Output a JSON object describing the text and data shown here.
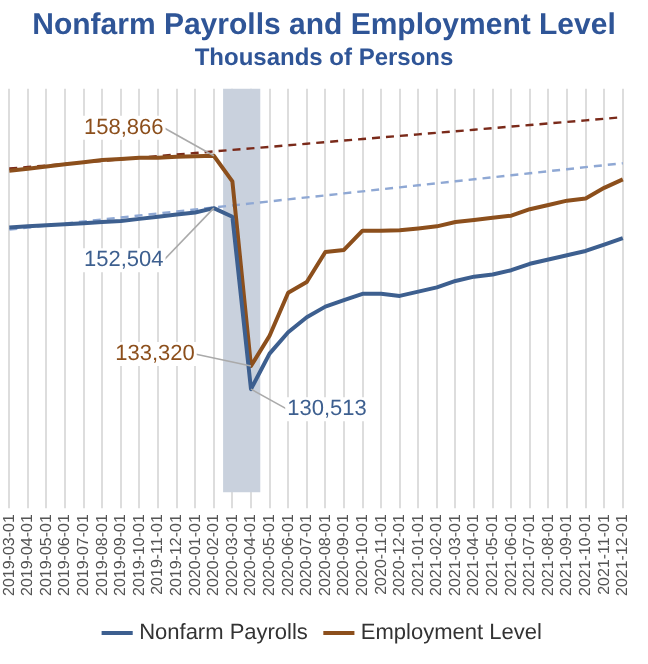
{
  "chart_data": {
    "type": "line",
    "title": "Nonfarm Payrolls and Employment Level",
    "subtitle": "Thousands of Persons",
    "categories": [
      "2019-03-01",
      "2019-04-01",
      "2019-05-01",
      "2019-06-01",
      "2019-07-01",
      "2019-08-01",
      "2019-09-01",
      "2019-10-01",
      "2019-11-01",
      "2019-12-01",
      "2020-01-01",
      "2020-02-01",
      "2020-03-01",
      "2020-04-01",
      "2020-05-01",
      "2020-06-01",
      "2020-07-01",
      "2020-08-01",
      "2020-09-01",
      "2020-10-01",
      "2020-11-01",
      "2020-12-01",
      "2021-01-01",
      "2021-02-01",
      "2021-03-01",
      "2021-04-01",
      "2021-05-01",
      "2021-06-01",
      "2021-07-01",
      "2021-08-01",
      "2021-09-01",
      "2021-10-01",
      "2021-11-01",
      "2021-12-01"
    ],
    "series": [
      {
        "name": "Nonfarm Payrolls",
        "color": "#3d5f8f",
        "values": [
          150160,
          150290,
          150420,
          150550,
          150680,
          150810,
          150940,
          151200,
          151460,
          151720,
          151980,
          152504,
          151460,
          130513,
          134830,
          137420,
          139240,
          140540,
          141320,
          142100,
          142100,
          141840,
          142360,
          142880,
          143660,
          144180,
          144440,
          144960,
          145740,
          146260,
          146780,
          147300,
          148080,
          148860
        ],
        "value_labels": [
          null,
          null,
          null,
          null,
          null,
          null,
          null,
          null,
          null,
          null,
          null,
          "152,504",
          null,
          "130,513",
          null,
          null,
          null,
          null,
          null,
          null,
          null,
          null,
          null,
          null,
          null,
          null,
          null,
          null,
          null,
          null,
          null,
          null,
          null,
          null
        ]
      },
      {
        "name": "Employment Level",
        "color": "#8c4f1c",
        "values": [
          157050,
          157300,
          157570,
          157830,
          158090,
          158350,
          158480,
          158610,
          158610,
          158740,
          158800,
          158866,
          155750,
          133320,
          137000,
          142230,
          143530,
          147170,
          147430,
          149770,
          149770,
          149810,
          150030,
          150290,
          150810,
          151070,
          151330,
          151590,
          152370,
          152890,
          153410,
          153670,
          154970,
          156000
        ],
        "value_labels": [
          null,
          null,
          null,
          null,
          null,
          null,
          null,
          null,
          null,
          null,
          null,
          "158,866",
          null,
          "133,320",
          null,
          null,
          null,
          null,
          null,
          null,
          null,
          null,
          null,
          null,
          null,
          null,
          null,
          null,
          null,
          null,
          null,
          null,
          null,
          null
        ]
      },
      {
        "type": "line",
        "color": "#8fa8d4",
        "line_style": "dashed",
        "values": [
          149900,
          150140,
          150390,
          150630,
          150880,
          151120,
          151370,
          151610,
          151860,
          152100,
          152340,
          152590,
          152830,
          153080,
          153320,
          153570,
          153810,
          154050,
          154300,
          154540,
          154790,
          155030,
          155280,
          155520,
          155770,
          156010,
          156250,
          156500,
          156740,
          156990,
          157230,
          157480,
          157720,
          157960
        ]
      },
      {
        "type": "line",
        "color": "#7a2a1a",
        "line_style": "dashed",
        "values": [
          157310,
          157500,
          157680,
          157870,
          158060,
          158250,
          158440,
          158630,
          158820,
          159010,
          159200,
          159390,
          159580,
          159760,
          159950,
          160140,
          160330,
          160520,
          160710,
          160900,
          161090,
          161280,
          161470,
          161660,
          161840,
          162030,
          162220,
          162410,
          162600,
          162790,
          162980,
          163170,
          163360,
          163550
        ]
      }
    ],
    "ylim": [
      118000,
      167000
    ],
    "grid": "x",
    "legend": "bottom",
    "marker": "none",
    "tick_labels": "x",
    "bands": [
      {
        "axis": "x",
        "from": "2020-03-01",
        "to": "2020-04-01",
        "color": "#c9d1dd"
      }
    ]
  }
}
